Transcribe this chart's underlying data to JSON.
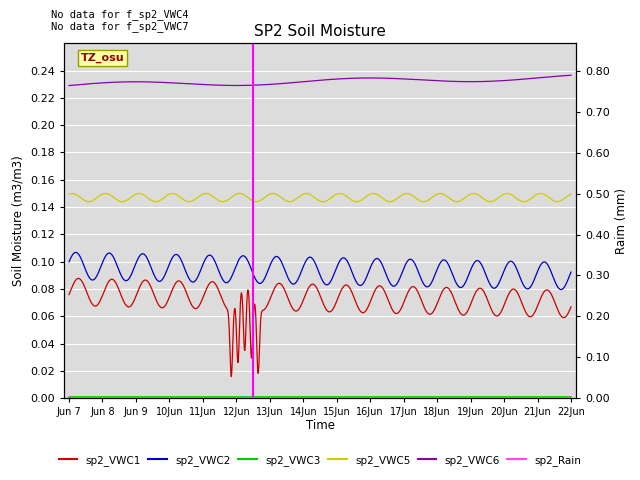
{
  "title": "SP2 Soil Moisture",
  "ylabel_left": "Soil Moisture (m3/m3)",
  "ylabel_right": "Raim (mm)",
  "xlabel": "Time",
  "no_data_text": [
    "No data for f_sp2_VWC4",
    "No data for f_sp2_VWC7"
  ],
  "timezone_label": "TZ_osu",
  "ylim_left": [
    0.0,
    0.26
  ],
  "ylim_right": [
    0.0,
    0.867
  ],
  "yticks_left": [
    0.0,
    0.02,
    0.04,
    0.06,
    0.08,
    0.1,
    0.12,
    0.14,
    0.16,
    0.18,
    0.2,
    0.22,
    0.24
  ],
  "yticks_right": [
    0.0,
    0.1,
    0.2,
    0.3,
    0.4,
    0.5,
    0.6,
    0.7,
    0.8
  ],
  "bg_color": "#dcdcdc",
  "series": {
    "VWC1": {
      "color": "#cc0000",
      "label": "sp2_VWC1"
    },
    "VWC2": {
      "color": "#0000cc",
      "label": "sp2_VWC2"
    },
    "VWC3": {
      "color": "#00cc00",
      "label": "sp2_VWC3"
    },
    "VWC5": {
      "color": "#cccc00",
      "label": "sp2_VWC5"
    },
    "VWC6": {
      "color": "#8800aa",
      "label": "sp2_VWC6"
    },
    "Rain": {
      "color": "#ff44ff",
      "label": "sp2_Rain"
    }
  },
  "vline_x": 12.5,
  "vline_color": "#ff00ff",
  "start_day": 7,
  "end_day": 22,
  "n_points": 1000
}
